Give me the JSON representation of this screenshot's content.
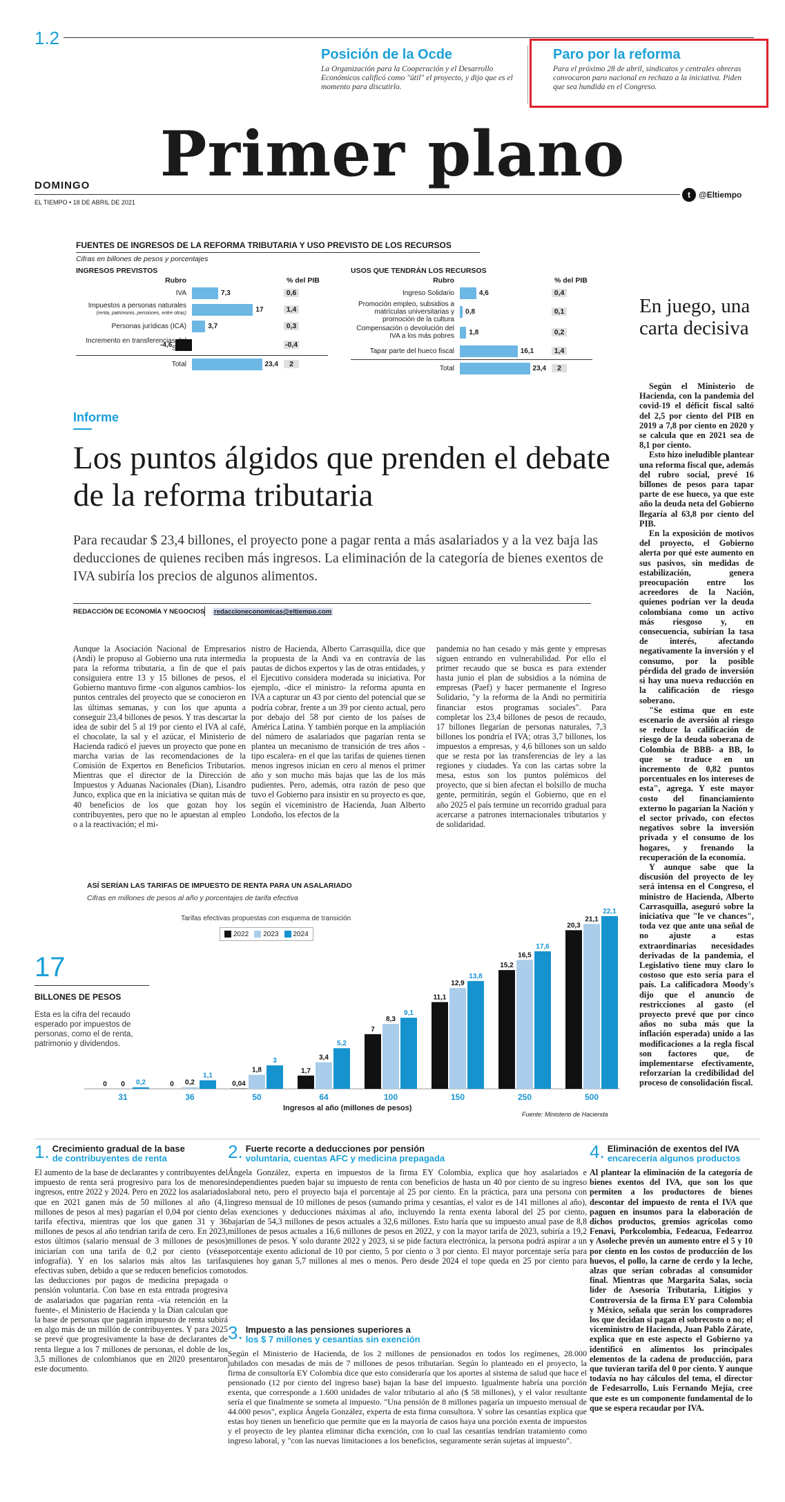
{
  "header": {
    "page_number": "1.2",
    "promo_left": {
      "title": "Posición de la Ocde",
      "text": "La Organización para la Cooperación y el Desarrollo Económicos calificó como \"útil\" el proyecto, y dijo que es el momento para discutirlo."
    },
    "promo_right": {
      "title": "Paro por la reforma",
      "text": "Para el próximo 28 de abril, sindicatos y centrales obreras convocaron paro nacional en rechazo a la iniciativa. Piden que sea hundida en el Congreso."
    },
    "masthead": "Primer plano",
    "day": "DOMINGO",
    "dateline": "EL TIEMPO • 18 DE ABRIL DE 2021",
    "twitter": "@Eltiempo"
  },
  "income_table": {
    "title": "FUENTES DE INGRESOS DE LA REFORMA TRIBUTARIA Y USO PREVISTO DE LOS RECURSOS",
    "subtitle": "Cifras en billones de pesos y porcentajes",
    "left_header": "INGRESOS PREVISTOS",
    "left_col_rubro": "Rubro",
    "left_col_pib": "% del PIB",
    "left_rows": [
      {
        "label": "IVA",
        "sub": "",
        "value": "7,3",
        "num": 7.3,
        "pib": "0,6"
      },
      {
        "label": "Impuestos a personas naturales",
        "sub": "(renta, patrimonio, pensiones, entre otras)",
        "value": "17",
        "num": 17,
        "pib": "1,4"
      },
      {
        "label": "Personas jurídicas (ICA)",
        "sub": "",
        "value": "3,7",
        "num": 3.7,
        "pib": "0,3"
      },
      {
        "label": "Incremento en transferencias del SGP",
        "sub": "",
        "value": "-4,6",
        "num": -4.6,
        "pib": "-0,4"
      },
      {
        "label": "Total",
        "sub": "",
        "value": "23,4",
        "num": 23.4,
        "pib": "2"
      }
    ],
    "right_header": "USOS QUE TENDRÁN LOS RECURSOS",
    "right_col_rubro": "Rubro",
    "right_col_pib": "% del PIB",
    "right_rows": [
      {
        "label": "Ingreso Solidario",
        "value": "4,6",
        "num": 4.6,
        "pib": "0,4"
      },
      {
        "label": "Promoción empleo, subsidios a matrículas universitarias y promoción de la cultura",
        "value": "0,8",
        "num": 0.8,
        "pib": "0,1"
      },
      {
        "label": "Compensación o devolución del IVA a los más pobres",
        "value": "1,8",
        "num": 1.8,
        "pib": "0,2"
      },
      {
        "label": "Tapar parte del hueco fiscal",
        "value": "16,1",
        "num": 16.1,
        "pib": "1,4"
      },
      {
        "label": "Total",
        "value": "23,4",
        "num": 23.4,
        "pib": "2"
      }
    ]
  },
  "sidebar": {
    "title": "En juego, una carta decisiva",
    "paragraphs": [
      "Según el Ministerio de Hacienda, con la pandemia del covid-19 el déficit fiscal saltó del 2,5 por ciento del PIB en 2019 a 7,8 por ciento en 2020 y se calcula que en 2021 sea de 8,1 por ciento.",
      "Esto hizo ineludible plantear una reforma fiscal que, además del rubro social, prevé 16 billones de pesos para tapar parte de ese hueco, ya que este año la deuda neta del Gobierno llegaría al 63,8 por ciento del PIB.",
      "En la exposición de motivos del proyecto, el Gobierno alerta por qué este aumento en sus pasivos, sin medidas de estabilización, genera preocupación entre los acreedores de la Nación, quienes podrían ver la deuda colombiana como un activo más riesgoso y, en consecuencia, subirían la tasa de interés, afectando negativamente la inversión y el consumo, por la posible pérdida del grado de inversión si hay una nueva reducción en la calificación de riesgo soberano.",
      "\"Se estima que en este escenario de aversión al riesgo se reduce la calificación de riesgo de la deuda soberana de Colombia de BBB- a BB, lo que se traduce en un incremento de 0,82 puntos porcentuales en los intereses de esta\", agrega. Y este mayor costo del financiamiento externo lo pagarían la Nación y el sector privado, con efectos negativos sobre la inversión privada y el consumo de los hogares, y frenando la recuperación de la economía.",
      "Y aunque sabe que la discusión del proyecto de ley será intensa en el Congreso, el ministro de Hacienda, Alberto Carrasquilla, aseguró sobre la iniciativa que \"le ve chances\", toda vez que ante una señal de no ajuste a estas extraordinarias necesidades derivadas de la pandemia, el Legislativo tiene muy claro lo costoso que esto sería para el país. La calificadora Moody's dijo que el anuncio de restricciones al gasto (el proyecto prevé que por cinco años no suba más que la inflación esperada) unido a las modificaciones a la regla fiscal son factores que, de implementarse efectivamente, reforzarían la credibilidad del proceso de consolidación fiscal."
    ]
  },
  "article": {
    "kicker": "Informe",
    "headline": "Los puntos álgidos que prenden el debate de la reforma tributaria",
    "deck": "Para recaudar $ 23,4 billones, el proyecto pone a pagar renta a más asalariados y a la vez baja las deducciones de quienes reciben más ingresos. La eliminación de la categoría de bienes exentos de IVA subiría los precios de algunos alimentos.",
    "byline": "REDACCIÓN DE ECONOMÍA Y NEGOCIOS",
    "email": "redaccioneconomicas@eltiempo.com",
    "col1": "Aunque la Asociación Nacional de Empresarios (Andi) le propuso al Gobierno una ruta intermedia para la reforma tributaria, a fin de que el país consiguiera entre 13 y 15 billones de pesos, el Gobierno mantuvo firme -con algunos cambios- los puntos centrales del proyecto que se conocieron en las últimas semanas, y con los que apunta a conseguir 23,4 billones de pesos. Y tras descartar la idea de subir del 5 al 19 por ciento el IVA al café, el chocolate, la sal y el azúcar, el Ministerio de Hacienda radicó el jueves un proyecto que pone en marcha varias de las recomendaciones de la Comisión de Expertos en Beneficios Tributarios. Mientras que el director de la Dirección de Impuestos y Aduanas Nacionales (Dian), Lisandro Junco, explica que en la iniciativa se quitan más de 40 beneficios de los que gozan hoy los contribuyentes, pero que no le apuestan al empleo o a la reactivación; el mi-",
    "col2": "nistro de Hacienda, Alberto Carrasquilla, dice que la propuesta de la Andi va en contravía de las pautas de dichos expertos y las de otras entidades, y el Ejecutivo considera moderada su iniciativa. Por ejemplo, -dice el ministro- la reforma apunta en IVA a capturar un 43 por ciento del potencial que se podría cobrar, frente a un 39 por ciento actual, pero por debajo del 58 por ciento de los países de América Latina. Y también porque en la ampliación del número de asalariados que pagarían renta se plantea un mecanismo de transición de tres años -tipo escalera- en el que las tarifas de quienes tienen menos ingresos inician en cero al menos el primer año y son mucho más bajas que las de los más pudientes. Pero, además, otra razón de peso que tuvo el Gobierno para insistir en su proyecto es que, según el viceministro de Hacienda, Juan Alberto Londoño, los efectos de la",
    "col3": "pandemia no han cesado y más gente y empresas siguen entrando en vulnerabilidad. Por ello el primer recaudo que se busca es para extender hasta junio el plan de subsidios a la nómina de empresas (Paef) y hacer permanente el Ingreso Solidario, \"y la reforma de la Andi no permitiría financiar estos programas sociales\". Para completar los 23,4 billones de pesos de recaudo, 17 billones llegarían de personas naturales, 7,3 billones los pondría el IVA; otras 3,7 billones, los impuestos a empresas, y 4,6 billones son un saldo que se resta por las transferencias de ley a las regiones y ciudades. Ya con las cartas sobre la mesa, estos son los puntos polémicos del proyecto, que si bien afectan el bolsillo de mucha gente, permitirán, según el Gobierno, que en el año 2025 el país termine un recorrido gradual para acercarse a patrones internacionales tributarios y de solidaridad."
  },
  "bigstat": {
    "number": "17",
    "label": "BILLONES DE PESOS",
    "text": "Esta es la cifra del recaudo esperado por impuestos de personas, como el de renta, patrimonio y dividendos."
  },
  "chart_data": {
    "type": "bar",
    "title": "ASÍ SERÍAN LAS TARIFAS DE IMPUESTO DE RENTA PARA UN ASALARIADO",
    "subtitle": "Cifras en millones de pesos al año y porcentajes de tarifa efectiva",
    "legend_title": "Tarifas efectivas propuestas con esquema de transición",
    "xlabel": "Ingresos al año (millones de pesos)",
    "source": "Fuente: Ministerio de Hacienda",
    "categories": [
      "31",
      "36",
      "50",
      "64",
      "100",
      "150",
      "250",
      "500"
    ],
    "series": [
      {
        "name": "2022",
        "color": "#111111",
        "values": [
          0,
          0,
          0.04,
          1.7,
          7,
          11.1,
          15.2,
          20.3
        ],
        "labels": [
          "0",
          "0",
          "0,04",
          "1,7",
          "7",
          "11,1",
          "15,2",
          "20,3"
        ]
      },
      {
        "name": "2023",
        "color": "#a9cdea",
        "values": [
          0,
          0.2,
          1.8,
          3.4,
          8.3,
          12.9,
          16.5,
          21.1
        ],
        "labels": [
          "0",
          "0,2",
          "1,8",
          "3,4",
          "8,3",
          "12,9",
          "16,5",
          "21,1"
        ]
      },
      {
        "name": "2024",
        "color": "#1693cf",
        "values": [
          0.2,
          1.1,
          3,
          5.2,
          9.1,
          13.8,
          17.6,
          22.1
        ],
        "labels": [
          "0,2",
          "1,1",
          "3",
          "5,2",
          "9,1",
          "13,8",
          "17,6",
          "22,1"
        ]
      }
    ],
    "ylim": [
      0,
      22.1
    ]
  },
  "sections": [
    {
      "num": "1.",
      "title": "Crecimiento gradual de la base",
      "subtitle": "de contribuyentes de renta",
      "body": "El aumento de la base de declarantes y contribuyentes del impuesto de renta será progresivo para los de menores ingresos, entre 2022 y 2024. Pero en 2022 los asalariados que en 2021 ganen más de 50 millones al año (4,1 millones de pesos al mes) pagarían el 0,04 por ciento de tarifa efectiva, mientras que los que ganen 31 y 36 millones de pesos al año tendrían tarifa de cero. En 2023, estos últimos (salario mensual de 3 millones de pesos) iniciarían con una tarifa de 0,2 por ciento (véase infografía). Y en los salarios más altos las tarifas efectivas suben, debido a que se reducen beneficios como las deducciones por pagos de medicina prepagada o pensión voluntaria. Con base en esta entrada progresiva de asalariados que pagarían renta -vía retención en la fuente-, el Ministerio de Hacienda y la Dian calculan que la base de personas que pagarán impuesto de renta subirá en algo más de un millón de contribuyentes. Y para 2025 se prevé que progresivamente la base de declarantes de renta llegue a los 7 millones de personas, el doble de los 3,5 millones de colombianos que en 2020 presentaron este documento."
    },
    {
      "num": "2.",
      "title": "Fuerte recorte a deducciones por pensión",
      "subtitle": "voluntaria, cuentas AFC y medicina prepagada",
      "body": "Ángela González, experta en impuestos de la firma EY Colombia, explica que hoy asalariados e independientes pueden bajar su impuesto de renta con beneficios de hasta un 40 por ciento de su ingreso laboral neto, pero el proyecto baja el porcentaje al 25 por ciento. En la práctica, para una persona con ingreso mensual de 10 millones de pesos (sumando prima y cesantías, el valor es de 141 millones al año), las exenciones y deducciones máximas al año, incluyendo la renta exenta laboral del 25 por ciento, bajarían de 54,3 millones de pesos actuales a 32,6 millones. Esto haría que su impuesto anual pase de 8,8 millones de pesos actuales a 16,6 millones de pesos en 2022, y con la mayor tarifa de 2023, subiría a 19,2 millones de pesos. Y solo durante 2022 y 2023, si se pide factura electrónica, la persona podrá aspirar a un porcentaje exento adicional de 10 por ciento, 5 por ciento o 3 por ciento. El mayor porcentaje sería para quienes hoy ganan 5,7 millones al mes o menos. Pero desde 2024 el tope queda en 25 por ciento para todos."
    },
    {
      "num": "3.",
      "title": "Impuesto a las pensiones superiores a",
      "subtitle": "los $ 7 millones y cesantías sin exención",
      "body": "Según el Ministerio de Hacienda, de los 2 millones de pensionados en todos los regímenes, 28.000 jubilados con mesadas de más de 7 millones de pesos tributarían. Según lo planteado en el proyecto, la firma de consultoría EY Colombia dice que esto consideraría que los aportes al sistema de salud que hace el pensionado (12 por ciento del ingreso base) bajan la base del impuesto. Igualmente habría una porción exenta, que corresponde a 1.600 unidades de valor tributario al año ($ 58 millones), y el valor resultante sería el que finalmente se someta al impuesto. \"Una pensión de 8 millones pagaría un impuesto mensual de 44.000 pesos\", explica Ángela González, experta de esta firma consultora. Y sobre las cesantías explica que estas hoy tienen un beneficio que permite que en la mayoría de casos haya una porción exenta de impuestos y el proyecto de ley plantea eliminar dicha exención, con lo cual las cesantías tendrían tratamiento como ingreso laboral, y \"con las nuevas limitaciones a los beneficios, seguramente serán sujetas al impuesto\"."
    },
    {
      "num": "4.",
      "title": "Eliminación de exentos del IVA",
      "subtitle": "encarecería algunos productos",
      "body": "Al plantear la eliminación de la categoría de bienes exentos del IVA, que son los que permiten a los productores de bienes descontar del impuesto de renta el IVA que paguen en insumos para la elaboración de dichos productos, gremios agrícolas como Fenavi, Porkcolombia, Fedeacua, Fedearroz y Asoleche prevén un aumento entre el 5 y 10 por ciento en los costos de producción de los huevos, el pollo, la carne de cerdo y la leche, alzas que serían cobradas al consumidor final. Mientras que Margarita Salas, socia líder de Asesoría Tributaria, Litigios y Controversia de la firma EY para Colombia y México, señala que serán los compradores los que decidan si pagan el sobrecosto o no; el viceministro de Hacienda, Juan Pablo Zárate, explica que en este aspecto el Gobierno ya identificó en alimentos los principales elementos de la cadena de producción, para que tuvieran tarifa del 0 por ciento. Y aunque todavía no hay cálculos del tema, el director de Fedesarrollo, Luis Fernando Mejía, cree que este es un componente fundamental de lo que se espera recaudar por IVA."
    }
  ]
}
